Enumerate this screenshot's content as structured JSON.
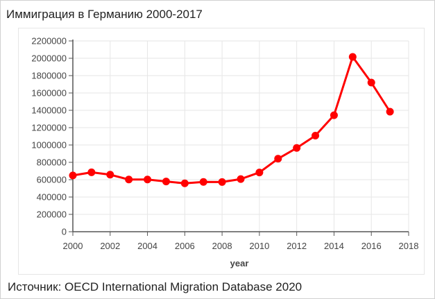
{
  "title": "Иммиграция в Германию 2000-2017",
  "source": "Источник: OECD International Migration Database 2020",
  "colors": {
    "line": "#ff0000",
    "grid": "#e6e6e6",
    "axis": "#555555",
    "text": "#444444"
  },
  "chart_data": {
    "type": "line",
    "title": "",
    "xlabel": "year",
    "ylabel": "",
    "xlim": [
      2000,
      2018
    ],
    "ylim": [
      0,
      2200000
    ],
    "xticks": [
      2000,
      2002,
      2004,
      2006,
      2008,
      2010,
      2012,
      2014,
      2016,
      2018
    ],
    "yticks": [
      0,
      200000,
      400000,
      600000,
      800000,
      1000000,
      1200000,
      1400000,
      1600000,
      1800000,
      2000000,
      2200000
    ],
    "grid": true,
    "legend": "none",
    "series": [
      {
        "x": [
          2000,
          2001,
          2002,
          2003,
          2004,
          2005,
          2006,
          2007,
          2008,
          2009,
          2010,
          2011,
          2012,
          2013,
          2014,
          2015,
          2016,
          2017
        ],
        "values": [
          649000,
          685000,
          658000,
          602000,
          602000,
          579000,
          558000,
          574000,
          573000,
          607000,
          683000,
          842000,
          966000,
          1108000,
          1343000,
          2016000,
          1720000,
          1384000
        ]
      }
    ]
  }
}
